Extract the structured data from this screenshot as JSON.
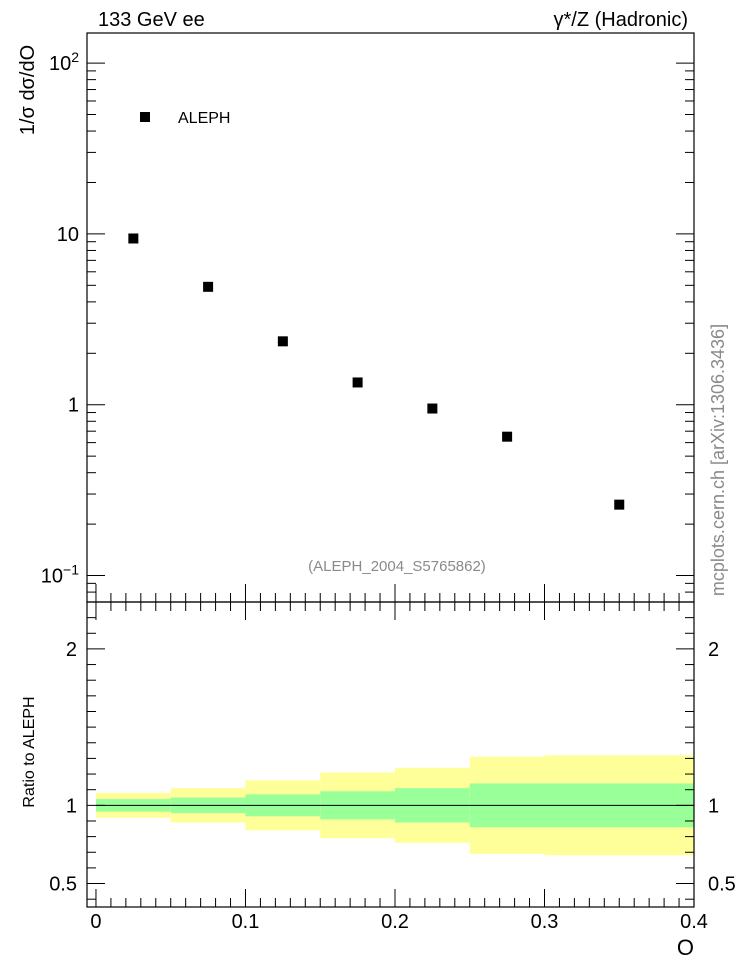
{
  "header": {
    "left": "133 GeV ee",
    "right": "γ*/Z (Hadronic)"
  },
  "side_label": "mcplots.cern.ch [arXiv:1306.3436]",
  "colors": {
    "band_inner": "#99ff99",
    "band_outer": "#ffff99",
    "marker": "#000000",
    "watermark": "#8a8a8a"
  },
  "chart_data": [
    {
      "type": "scatter",
      "panel": "main",
      "ylabel": "1/σ  dσ/dO",
      "yscale": "log",
      "ylim": [
        0.07,
        150
      ],
      "yticks": [
        {
          "value": 0.1,
          "base": "10",
          "exp": "−1"
        },
        {
          "value": 1,
          "label": "1"
        },
        {
          "value": 10,
          "label": "10"
        },
        {
          "value": 100,
          "base": "10",
          "exp": "2"
        }
      ],
      "xlim": [
        -0.006,
        0.4
      ],
      "legend": {
        "label": "ALEPH",
        "position": "top-left"
      },
      "watermark": "(ALEPH_2004_S5765862)",
      "series": [
        {
          "name": "ALEPH",
          "x": [
            0.025,
            0.075,
            0.125,
            0.175,
            0.225,
            0.275,
            0.35
          ],
          "y": [
            9.4,
            4.9,
            2.35,
            1.35,
            0.95,
            0.65,
            0.26
          ]
        }
      ]
    },
    {
      "type": "area",
      "panel": "ratio",
      "ylabel": "Ratio to ALEPH",
      "xlabel": "O",
      "ylim": [
        0.35,
        2.3
      ],
      "yticks": [
        {
          "value": 0.5,
          "label": "0.5"
        },
        {
          "value": 1,
          "label": "1"
        },
        {
          "value": 2,
          "label": "2"
        }
      ],
      "xlim": [
        -0.006,
        0.4
      ],
      "xticks": [
        {
          "value": 0,
          "label": "0"
        },
        {
          "value": 0.1,
          "label": "0.1"
        },
        {
          "value": 0.2,
          "label": "0.2"
        },
        {
          "value": 0.3,
          "label": "0.3"
        },
        {
          "value": 0.4,
          "label": "0.4"
        }
      ],
      "bins": [
        {
          "x0": 0.0,
          "x1": 0.05,
          "inner": [
            0.96,
            1.04
          ],
          "outer": [
            0.92,
            1.08
          ]
        },
        {
          "x0": 0.05,
          "x1": 0.1,
          "inner": [
            0.95,
            1.05
          ],
          "outer": [
            0.89,
            1.11
          ]
        },
        {
          "x0": 0.1,
          "x1": 0.15,
          "inner": [
            0.93,
            1.07
          ],
          "outer": [
            0.84,
            1.16
          ]
        },
        {
          "x0": 0.15,
          "x1": 0.2,
          "inner": [
            0.91,
            1.09
          ],
          "outer": [
            0.79,
            1.21
          ]
        },
        {
          "x0": 0.2,
          "x1": 0.25,
          "inner": [
            0.89,
            1.11
          ],
          "outer": [
            0.76,
            1.24
          ]
        },
        {
          "x0": 0.25,
          "x1": 0.3,
          "inner": [
            0.86,
            1.14
          ],
          "outer": [
            0.69,
            1.31
          ]
        },
        {
          "x0": 0.3,
          "x1": 0.4,
          "inner": [
            0.86,
            1.14
          ],
          "outer": [
            0.68,
            1.32
          ]
        }
      ],
      "reference_line": 1
    }
  ]
}
